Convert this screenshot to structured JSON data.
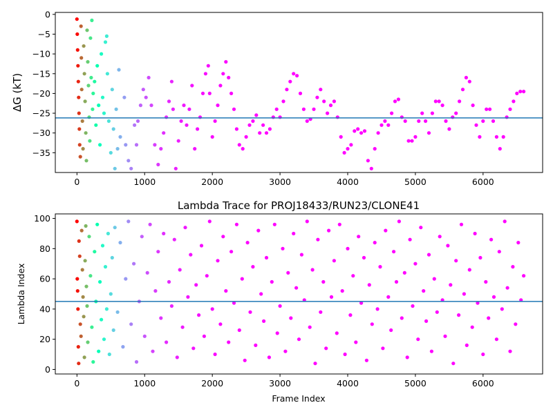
{
  "chart_data": [
    {
      "type": "scatter",
      "title": "",
      "xlabel": "",
      "ylabel": "ΔG (kT)",
      "xlim": [
        -320,
        6880
      ],
      "ylim": [
        -40,
        0.5
      ],
      "xticks": [
        0,
        1000,
        2000,
        3000,
        4000,
        5000,
        6000
      ],
      "yticks": [
        0,
        -5,
        -10,
        -15,
        -20,
        -25,
        -30,
        -35
      ],
      "hline": -26.2,
      "colormap": "rainbow",
      "color_mode": "decay",
      "grid": false,
      "points": [
        [
          0,
          -1.2
        ],
        [
          5,
          -5
        ],
        [
          10,
          -9
        ],
        [
          15,
          -13
        ],
        [
          20,
          -17
        ],
        [
          25,
          -21
        ],
        [
          30,
          -25
        ],
        [
          35,
          -29
        ],
        [
          40,
          -33
        ],
        [
          50,
          -36
        ],
        [
          60,
          -3
        ],
        [
          65,
          -11
        ],
        [
          70,
          -19
        ],
        [
          80,
          -27
        ],
        [
          90,
          -34
        ],
        [
          100,
          -8
        ],
        [
          110,
          -15
        ],
        [
          120,
          -22
        ],
        [
          130,
          -30
        ],
        [
          140,
          -37
        ],
        [
          150,
          -4
        ],
        [
          160,
          -12
        ],
        [
          170,
          -18
        ],
        [
          180,
          -26
        ],
        [
          190,
          -32
        ],
        [
          200,
          -6
        ],
        [
          210,
          -16
        ],
        [
          220,
          -1.5
        ],
        [
          230,
          -24
        ],
        [
          240,
          -20
        ],
        [
          260,
          -17
        ],
        [
          280,
          -28
        ],
        [
          300,
          -13
        ],
        [
          320,
          -23
        ],
        [
          340,
          -33
        ],
        [
          360,
          -10
        ],
        [
          380,
          -21
        ],
        [
          400,
          -25
        ],
        [
          420,
          -7
        ],
        [
          440,
          -5.5
        ],
        [
          450,
          -15
        ],
        [
          470,
          -27
        ],
        [
          500,
          -35
        ],
        [
          520,
          -19
        ],
        [
          540,
          -29
        ],
        [
          560,
          -39
        ],
        [
          580,
          -24
        ],
        [
          600,
          -34
        ],
        [
          620,
          -14
        ],
        [
          640,
          -31
        ],
        [
          700,
          -21
        ],
        [
          720,
          -33
        ],
        [
          760,
          -37
        ],
        [
          800,
          -39
        ],
        [
          850,
          -28
        ],
        [
          880,
          -33
        ],
        [
          900,
          -27
        ],
        [
          940,
          -23
        ],
        [
          980,
          -19
        ],
        [
          1020,
          -21
        ],
        [
          1060,
          -16
        ],
        [
          1100,
          -23
        ],
        [
          1150,
          -33
        ],
        [
          1200,
          -38
        ],
        [
          1240,
          -34
        ],
        [
          1280,
          -30
        ],
        [
          1320,
          -26
        ],
        [
          1360,
          -22
        ],
        [
          1400,
          -17
        ],
        [
          1420,
          -24
        ],
        [
          1460,
          -39
        ],
        [
          1500,
          -32
        ],
        [
          1540,
          -27
        ],
        [
          1580,
          -23
        ],
        [
          1620,
          -28
        ],
        [
          1660,
          -24
        ],
        [
          1700,
          -18
        ],
        [
          1740,
          -34
        ],
        [
          1780,
          -29
        ],
        [
          1820,
          -26
        ],
        [
          1860,
          -20
        ],
        [
          1900,
          -15
        ],
        [
          1940,
          -13
        ],
        [
          1960,
          -20
        ],
        [
          2000,
          -31
        ],
        [
          2040,
          -27
        ],
        [
          2080,
          -23
        ],
        [
          2120,
          -18
        ],
        [
          2160,
          -15
        ],
        [
          2200,
          -12
        ],
        [
          2240,
          -16
        ],
        [
          2280,
          -20
        ],
        [
          2320,
          -24
        ],
        [
          2360,
          -29
        ],
        [
          2400,
          -33
        ],
        [
          2450,
          -34
        ],
        [
          2500,
          -31
        ],
        [
          2550,
          -28
        ],
        [
          2600,
          -27
        ],
        [
          2650,
          -25.5
        ],
        [
          2700,
          -30
        ],
        [
          2750,
          -28
        ],
        [
          2800,
          -30
        ],
        [
          2850,
          -29
        ],
        [
          2900,
          -26
        ],
        [
          2950,
          -24
        ],
        [
          3000,
          -26
        ],
        [
          3050,
          -22
        ],
        [
          3100,
          -19
        ],
        [
          3150,
          -17
        ],
        [
          3200,
          -15
        ],
        [
          3250,
          -15.5
        ],
        [
          3300,
          -20
        ],
        [
          3350,
          -24
        ],
        [
          3400,
          -27
        ],
        [
          3450,
          -26.5
        ],
        [
          3500,
          -24
        ],
        [
          3550,
          -21
        ],
        [
          3600,
          -19
        ],
        [
          3650,
          -22
        ],
        [
          3700,
          -25
        ],
        [
          3750,
          -23
        ],
        [
          3800,
          -22
        ],
        [
          3850,
          -26
        ],
        [
          3900,
          -31
        ],
        [
          3950,
          -35
        ],
        [
          4000,
          -34
        ],
        [
          4050,
          -33
        ],
        [
          4100,
          -29.5
        ],
        [
          4150,
          -29
        ],
        [
          4200,
          -30
        ],
        [
          4250,
          -29.5
        ],
        [
          4300,
          -37
        ],
        [
          4350,
          -39
        ],
        [
          4400,
          -34
        ],
        [
          4450,
          -30
        ],
        [
          4500,
          -28
        ],
        [
          4550,
          -27
        ],
        [
          4600,
          -28
        ],
        [
          4650,
          -25
        ],
        [
          4700,
          -22
        ],
        [
          4750,
          -21.5
        ],
        [
          4800,
          -26
        ],
        [
          4850,
          -27
        ],
        [
          4900,
          -32
        ],
        [
          4950,
          -32
        ],
        [
          5000,
          -31
        ],
        [
          5050,
          -27
        ],
        [
          5100,
          -25
        ],
        [
          5150,
          -27
        ],
        [
          5200,
          -30
        ],
        [
          5250,
          -25
        ],
        [
          5300,
          -22
        ],
        [
          5350,
          -22
        ],
        [
          5400,
          -23
        ],
        [
          5450,
          -27
        ],
        [
          5500,
          -29
        ],
        [
          5550,
          -26
        ],
        [
          5600,
          -25
        ],
        [
          5650,
          -22
        ],
        [
          5700,
          -19
        ],
        [
          5750,
          -16
        ],
        [
          5800,
          -17
        ],
        [
          5850,
          -23
        ],
        [
          5900,
          -28
        ],
        [
          5950,
          -31
        ],
        [
          6000,
          -27
        ],
        [
          6050,
          -24
        ],
        [
          6100,
          -24
        ],
        [
          6150,
          -27
        ],
        [
          6200,
          -31
        ],
        [
          6250,
          -34
        ],
        [
          6300,
          -31
        ],
        [
          6350,
          -26
        ],
        [
          6400,
          -24
        ],
        [
          6450,
          -22
        ],
        [
          6500,
          -20
        ],
        [
          6550,
          -19.5
        ],
        [
          6600,
          -19.5
        ]
      ]
    },
    {
      "type": "scatter",
      "title": "Lambda Trace for PROJ18433/RUN23/CLONE41",
      "xlabel": "Frame Index",
      "ylabel": "Lambda Index",
      "xlim": [
        -320,
        6880
      ],
      "ylim": [
        -3,
        103
      ],
      "xticks": [
        0,
        1000,
        2000,
        3000,
        4000,
        5000,
        6000
      ],
      "yticks": [
        0,
        20,
        40,
        60,
        80,
        100
      ],
      "hline": 45,
      "colormap": "rainbow",
      "color_mode": "decay",
      "grid": false,
      "points": [
        [
          0,
          98
        ],
        [
          5,
          60
        ],
        [
          10,
          52
        ],
        [
          15,
          40
        ],
        [
          20,
          15
        ],
        [
          25,
          4
        ],
        [
          30,
          85
        ],
        [
          40,
          75
        ],
        [
          50,
          30
        ],
        [
          60,
          22
        ],
        [
          70,
          92
        ],
        [
          80,
          66
        ],
        [
          90,
          48
        ],
        [
          100,
          35
        ],
        [
          110,
          8
        ],
        [
          120,
          72
        ],
        [
          130,
          95
        ],
        [
          140,
          55
        ],
        [
          150,
          42
        ],
        [
          160,
          18
        ],
        [
          180,
          88
        ],
        [
          200,
          62
        ],
        [
          220,
          28
        ],
        [
          240,
          5
        ],
        [
          260,
          78
        ],
        [
          280,
          45
        ],
        [
          300,
          96
        ],
        [
          320,
          12
        ],
        [
          340,
          58
        ],
        [
          360,
          33
        ],
        [
          380,
          82
        ],
        [
          400,
          20
        ],
        [
          420,
          68
        ],
        [
          440,
          40
        ],
        [
          460,
          90
        ],
        [
          480,
          10
        ],
        [
          500,
          50
        ],
        [
          520,
          74
        ],
        [
          540,
          26
        ],
        [
          560,
          94
        ],
        [
          600,
          38
        ],
        [
          640,
          84
        ],
        [
          680,
          15
        ],
        [
          720,
          60
        ],
        [
          760,
          98
        ],
        [
          800,
          30
        ],
        [
          840,
          70
        ],
        [
          880,
          5
        ],
        [
          920,
          45
        ],
        [
          960,
          88
        ],
        [
          1000,
          22
        ],
        [
          1040,
          64
        ],
        [
          1080,
          96
        ],
        [
          1120,
          12
        ],
        [
          1160,
          52
        ],
        [
          1200,
          78
        ],
        [
          1240,
          34
        ],
        [
          1280,
          90
        ],
        [
          1320,
          18
        ],
        [
          1360,
          58
        ],
        [
          1400,
          42
        ],
        [
          1440,
          86
        ],
        [
          1480,
          8
        ],
        [
          1520,
          66
        ],
        [
          1560,
          28
        ],
        [
          1600,
          94
        ],
        [
          1640,
          48
        ],
        [
          1680,
          76
        ],
        [
          1720,
          14
        ],
        [
          1760,
          56
        ],
        [
          1800,
          36
        ],
        [
          1840,
          82
        ],
        [
          1880,
          22
        ],
        [
          1920,
          62
        ],
        [
          1960,
          98
        ],
        [
          2000,
          40
        ],
        [
          2040,
          10
        ],
        [
          2080,
          72
        ],
        [
          2120,
          30
        ],
        [
          2160,
          88
        ],
        [
          2200,
          52
        ],
        [
          2240,
          18
        ],
        [
          2280,
          78
        ],
        [
          2320,
          44
        ],
        [
          2360,
          96
        ],
        [
          2400,
          26
        ],
        [
          2440,
          60
        ],
        [
          2480,
          6
        ],
        [
          2520,
          84
        ],
        [
          2560,
          38
        ],
        [
          2600,
          68
        ],
        [
          2640,
          16
        ],
        [
          2680,
          92
        ],
        [
          2720,
          50
        ],
        [
          2760,
          32
        ],
        [
          2800,
          74
        ],
        [
          2840,
          8
        ],
        [
          2880,
          58
        ],
        [
          2920,
          96
        ],
        [
          2960,
          24
        ],
        [
          3000,
          42
        ],
        [
          3040,
          80
        ],
        [
          3080,
          12
        ],
        [
          3120,
          64
        ],
        [
          3160,
          34
        ],
        [
          3200,
          90
        ],
        [
          3240,
          54
        ],
        [
          3280,
          20
        ],
        [
          3320,
          76
        ],
        [
          3360,
          46
        ],
        [
          3400,
          98
        ],
        [
          3440,
          28
        ],
        [
          3480,
          66
        ],
        [
          3520,
          4
        ],
        [
          3560,
          86
        ],
        [
          3600,
          38
        ],
        [
          3640,
          58
        ],
        [
          3680,
          14
        ],
        [
          3720,
          92
        ],
        [
          3760,
          48
        ],
        [
          3800,
          72
        ],
        [
          3840,
          24
        ],
        [
          3880,
          96
        ],
        [
          3920,
          52
        ],
        [
          3960,
          10
        ],
        [
          4000,
          80
        ],
        [
          4040,
          36
        ],
        [
          4080,
          62
        ],
        [
          4120,
          18
        ],
        [
          4160,
          88
        ],
        [
          4200,
          44
        ],
        [
          4240,
          74
        ],
        [
          4280,
          6
        ],
        [
          4320,
          56
        ],
        [
          4360,
          30
        ],
        [
          4400,
          84
        ],
        [
          4440,
          40
        ],
        [
          4480,
          68
        ],
        [
          4520,
          14
        ],
        [
          4560,
          92
        ],
        [
          4600,
          48
        ],
        [
          4640,
          26
        ],
        [
          4680,
          78
        ],
        [
          4720,
          58
        ],
        [
          4760,
          98
        ],
        [
          4800,
          34
        ],
        [
          4840,
          64
        ],
        [
          4880,
          8
        ],
        [
          4920,
          86
        ],
        [
          4960,
          42
        ],
        [
          5000,
          70
        ],
        [
          5040,
          20
        ],
        [
          5080,
          94
        ],
        [
          5120,
          52
        ],
        [
          5160,
          32
        ],
        [
          5200,
          76
        ],
        [
          5240,
          12
        ],
        [
          5280,
          60
        ],
        [
          5320,
          38
        ],
        [
          5360,
          88
        ],
        [
          5400,
          46
        ],
        [
          5440,
          22
        ],
        [
          5480,
          82
        ],
        [
          5520,
          56
        ],
        [
          5560,
          4
        ],
        [
          5600,
          72
        ],
        [
          5640,
          36
        ],
        [
          5680,
          96
        ],
        [
          5720,
          50
        ],
        [
          5760,
          16
        ],
        [
          5800,
          66
        ],
        [
          5840,
          28
        ],
        [
          5880,
          90
        ],
        [
          5920,
          44
        ],
        [
          5960,
          74
        ],
        [
          6000,
          10
        ],
        [
          6040,
          58
        ],
        [
          6080,
          34
        ],
        [
          6120,
          86
        ],
        [
          6160,
          48
        ],
        [
          6200,
          20
        ],
        [
          6240,
          78
        ],
        [
          6280,
          40
        ],
        [
          6320,
          98
        ],
        [
          6360,
          54
        ],
        [
          6400,
          12
        ],
        [
          6440,
          68
        ],
        [
          6480,
          30
        ],
        [
          6520,
          84
        ],
        [
          6560,
          46
        ],
        [
          6600,
          62
        ]
      ]
    }
  ]
}
